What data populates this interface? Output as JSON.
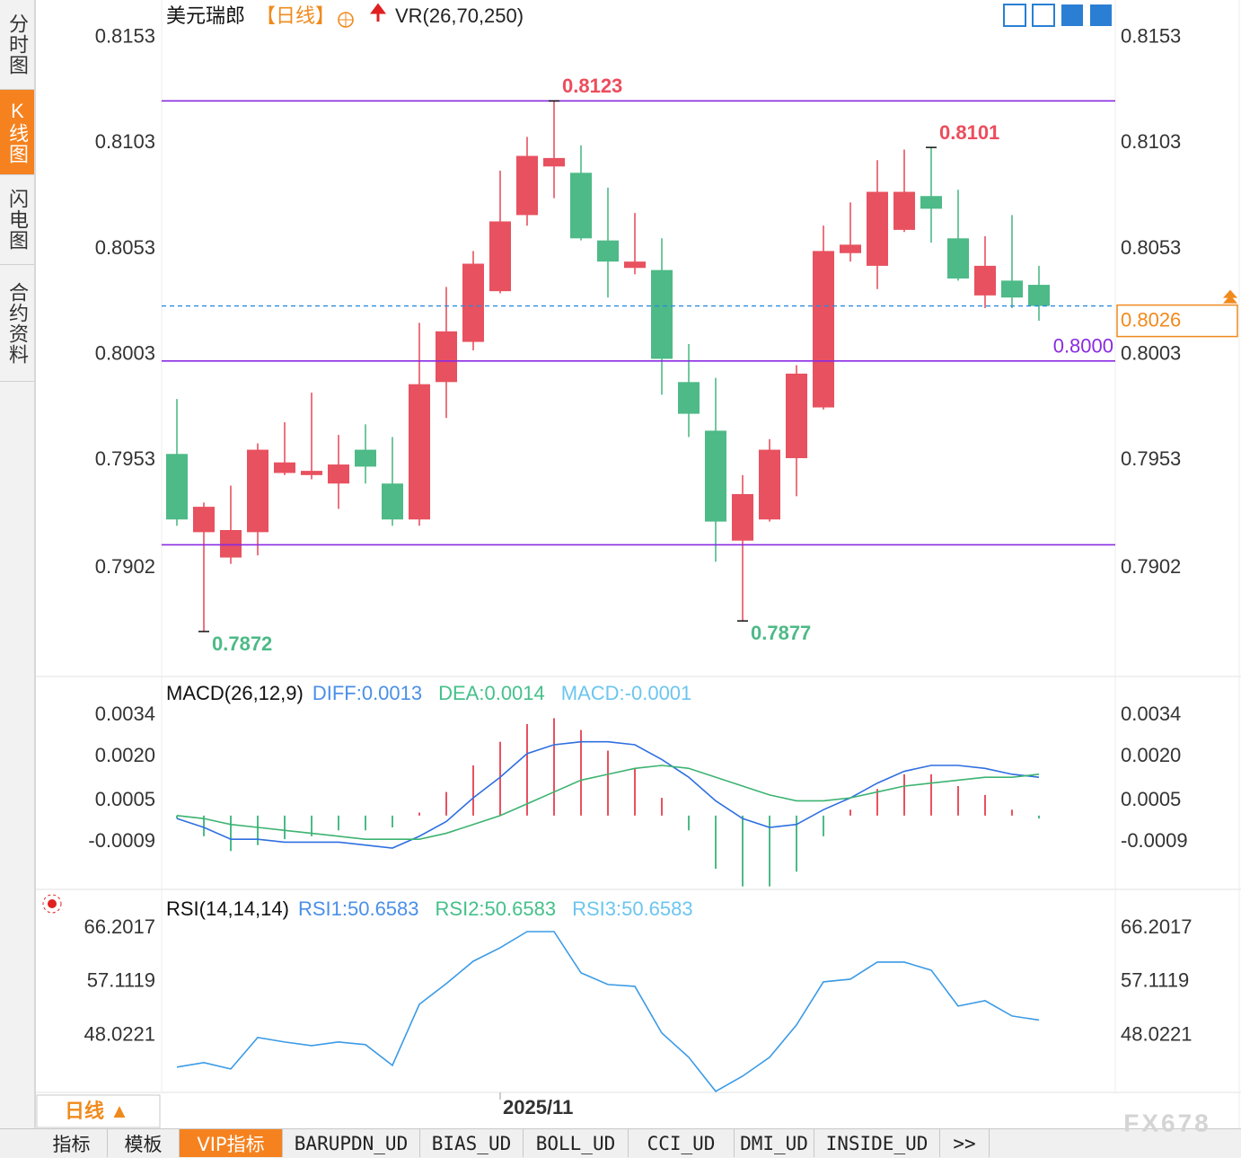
{
  "sidebar": [
    "分时图",
    "K线图",
    "闪电图",
    "合约资料"
  ],
  "header": {
    "symbol": "美元瑞郎",
    "period": "【日线】",
    "indicator": "VR(26,70,250)"
  },
  "chart_data": [
    {
      "type": "candlestick",
      "categories": [
        null,
        null,
        null,
        null,
        null,
        null,
        null,
        null,
        null,
        null,
        null,
        null,
        "2025/11",
        null,
        null,
        null,
        null,
        null,
        null,
        null,
        null,
        null,
        null,
        null,
        null,
        null,
        null,
        null,
        null,
        null,
        null,
        null,
        null
      ],
      "open": [
        0.7956,
        0.7919,
        0.7907,
        0.7919,
        0.7947,
        0.7946,
        0.7942,
        0.7958,
        0.7942,
        0.7925,
        0.799,
        0.8009,
        0.8033,
        0.8069,
        0.8092,
        0.8089,
        0.8057,
        0.8044,
        0.8043,
        0.799,
        0.7967,
        0.7915,
        0.7925,
        0.7954,
        0.7978,
        0.8051,
        0.8045,
        0.8062,
        0.8078,
        0.8058,
        0.8031,
        0.8038,
        0.8036
      ],
      "high": [
        0.7982,
        0.7933,
        0.7941,
        0.7961,
        0.7971,
        0.7985,
        0.7965,
        0.797,
        0.7964,
        0.8018,
        0.8035,
        0.8052,
        0.809,
        0.8106,
        0.8123,
        0.8102,
        0.8082,
        0.807,
        0.8058,
        0.8008,
        0.7992,
        0.7946,
        0.7963,
        0.7998,
        0.8064,
        0.8075,
        0.8095,
        0.81,
        0.8101,
        0.8081,
        0.8059,
        0.8069,
        0.8045
      ],
      "low": [
        0.7922,
        0.7872,
        0.7904,
        0.7908,
        0.7946,
        0.7944,
        0.793,
        0.7942,
        0.7922,
        0.7922,
        0.7973,
        0.8005,
        0.8032,
        0.8064,
        0.8077,
        0.8057,
        0.803,
        0.8041,
        0.7984,
        0.7964,
        0.7905,
        0.7877,
        0.7924,
        0.7936,
        0.7977,
        0.8047,
        0.8034,
        0.8061,
        0.8056,
        0.8038,
        0.8025,
        0.8025,
        0.8019
      ],
      "close": [
        0.7925,
        0.7931,
        0.792,
        0.7958,
        0.7952,
        0.7948,
        0.7951,
        0.795,
        0.7925,
        0.7989,
        0.8014,
        0.8046,
        0.8066,
        0.8097,
        0.8096,
        0.8058,
        0.8047,
        0.8047,
        0.8001,
        0.7975,
        0.7924,
        0.7937,
        0.7958,
        0.7994,
        0.8052,
        0.8055,
        0.808,
        0.808,
        0.8072,
        0.8039,
        0.8045,
        0.803,
        0.8026
      ],
      "up_color": "#e8515f",
      "down_color": "#4dba87",
      "ylim": [
        0.7852,
        0.8158
      ],
      "yticks": [
        0.7902,
        0.7953,
        0.8003,
        0.8053,
        0.8103,
        0.8153
      ],
      "levels": [
        0.8123,
        {
          "value": 0.8,
          "label": "0.8000"
        },
        0.7913
      ],
      "level_color": "#8a2be2",
      "last_price": {
        "value": 0.8026,
        "label": "0.8026"
      },
      "annotations": [
        {
          "value": 0.8123,
          "label": "0.8123",
          "color": "#ec4d5c"
        },
        {
          "value": 0.8101,
          "label": "0.8101",
          "color": "#ec4d5c"
        },
        {
          "value": 0.7872,
          "label": "0.7872",
          "color": "#4dba87"
        },
        {
          "value": 0.7877,
          "label": "0.7877",
          "color": "#4dba87"
        }
      ]
    },
    {
      "type": "macd",
      "title": "MACD(26,12,9)",
      "legend": [
        {
          "label": "DIFF:0.0013",
          "color": "#4a8fe8"
        },
        {
          "label": "DEA:0.0014",
          "color": "#45c08a"
        },
        {
          "label": "MACD:-0.0001",
          "color": "#6cc5ef"
        }
      ],
      "series": [
        {
          "color": "#2f6fe0",
          "values": [
            -0.0001,
            -0.0004,
            -0.0008,
            -0.0008,
            -0.0009,
            -0.0009,
            -0.0009,
            -0.001,
            -0.0011,
            -0.0007,
            -0.0002,
            0.0006,
            0.0013,
            0.0021,
            0.0024,
            0.0025,
            0.0025,
            0.0024,
            0.0019,
            0.0013,
            0.0005,
            -0.0001,
            -0.0004,
            -0.0003,
            0.0002,
            0.0006,
            0.0011,
            0.0015,
            0.0017,
            0.0017,
            0.0016,
            0.0014,
            0.0013
          ]
        },
        {
          "color": "#3cb371",
          "values": [
            0,
            -0.0001,
            -0.0003,
            -0.0004,
            -0.0005,
            -0.0006,
            -0.0007,
            -0.0008,
            -0.0008,
            -0.0008,
            -0.0006,
            -0.0003,
            0,
            0.0004,
            0.0008,
            0.0012,
            0.0014,
            0.0016,
            0.0017,
            0.0016,
            0.0013,
            0.001,
            0.0007,
            0.0005,
            0.0005,
            0.0006,
            0.0008,
            0.001,
            0.0011,
            0.0012,
            0.0013,
            0.0013,
            0.0014
          ]
        }
      ],
      "histogram": {
        "up_color": "#e8515f",
        "down_color": "#4dba87",
        "values": [
          -0.0001,
          -0.0007,
          -0.0012,
          -0.001,
          -0.0008,
          -0.0007,
          -0.0005,
          -0.0005,
          -0.0004,
          0.0001,
          0.0008,
          0.0017,
          0.0025,
          0.0031,
          0.0033,
          0.0029,
          0.0022,
          0.0016,
          0.0006,
          -0.0005,
          -0.0018,
          -0.0024,
          -0.0024,
          -0.0019,
          -0.0007,
          0.0002,
          0.0009,
          0.0014,
          0.0014,
          0.001,
          0.0007,
          0.0002,
          -0.0001
        ]
      },
      "ylim": [
        -0.0025,
        0.0045
      ],
      "yticks": [
        0.0034,
        {
          "value": 0.002,
          "label": "0.0020"
        },
        0.0005,
        -0.0009
      ]
    },
    {
      "type": "line",
      "title": "RSI(14,14,14)",
      "legend": [
        {
          "label": "RSI1:50.6583",
          "color": "#4a8fe8"
        },
        {
          "label": "RSI2:50.6583",
          "color": "#45c08a"
        },
        {
          "label": "RSI3:50.6583",
          "color": "#6cc5ef"
        }
      ],
      "series": [
        {
          "color": "#3b9be6",
          "values": [
            42.72,
            43.48,
            42.41,
            47.72,
            46.96,
            46.35,
            46.96,
            46.51,
            43.02,
            53.32,
            56.81,
            60.59,
            62.87,
            65.59,
            65.59,
            58.63,
            56.66,
            56.35,
            48.47,
            44.38,
            38.63,
            41.2,
            44.38,
            49.84,
            57.11,
            57.56,
            60.44,
            60.44,
            59.08,
            53.02,
            53.93,
            51.35,
            50.6583
          ]
        }
      ],
      "ylim": [
        38.6,
        71.2
      ],
      "yticks": [
        48.0221,
        57.1119,
        66.2017
      ]
    }
  ],
  "footer": {
    "period_button": "日线 ▲",
    "tabs": [
      "指标",
      "模板",
      "VIP指标",
      "BARUPDN_UD",
      "BIAS_UD",
      "BOLL_UD",
      "CCI_UD",
      "DMI_UD",
      "INSIDE_UD",
      ">>"
    ],
    "watermark": "FX678"
  }
}
